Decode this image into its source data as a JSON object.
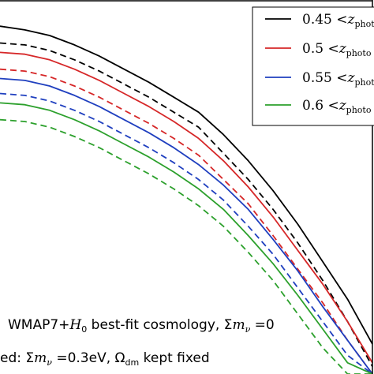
{
  "chart_data": {
    "type": "line",
    "title": "",
    "xlabel": "",
    "ylabel": "",
    "x": [
      0,
      4,
      8,
      12,
      16,
      20,
      24,
      28,
      32,
      36,
      40,
      44,
      48,
      52,
      56,
      60
    ],
    "xlim": [
      0,
      60
    ],
    "ylim": [
      0,
      100
    ],
    "grid": false,
    "legend_position": "top-right",
    "legend": [
      {
        "label": "0.45 < z_photo",
        "color": "#000000"
      },
      {
        "label": "0.5 < z_photo",
        "color": "#d62728"
      },
      {
        "label": "0.55 < z_photo",
        "color": "#1f3fbf"
      },
      {
        "label": "0.6 < z_photo",
        "color": "#2ca02c"
      }
    ],
    "series": [
      {
        "label_ref": 0,
        "style": "solid",
        "color": "#000000",
        "values": [
          93,
          92,
          90.5,
          88,
          85,
          81.5,
          78,
          74,
          70,
          64,
          57,
          49,
          40,
          30,
          20,
          8
        ]
      },
      {
        "label_ref": 0,
        "style": "dashed",
        "color": "#000000",
        "values": [
          88.5,
          88,
          86.5,
          84,
          81,
          77.5,
          74,
          70,
          66,
          59,
          52,
          44,
          35,
          25,
          14,
          2
        ]
      },
      {
        "label_ref": 1,
        "style": "solid",
        "color": "#d62728",
        "values": [
          86,
          85.5,
          84,
          81.5,
          78.5,
          75,
          71.5,
          67.5,
          63,
          57,
          50,
          42,
          33,
          24,
          14,
          3
        ]
      },
      {
        "label_ref": 1,
        "style": "dashed",
        "color": "#d62728",
        "values": [
          81.5,
          81,
          79.5,
          77,
          74,
          70.5,
          67,
          63,
          58.5,
          52,
          45.5,
          37,
          28,
          19,
          9,
          0
        ]
      },
      {
        "label_ref": 2,
        "style": "solid",
        "color": "#1f3fbf",
        "values": [
          79,
          78.5,
          77,
          74.5,
          71.5,
          68,
          64.5,
          60.5,
          56,
          50.5,
          44,
          36,
          27.5,
          18,
          9,
          0
        ]
      },
      {
        "label_ref": 2,
        "style": "dashed",
        "color": "#1f3fbf",
        "values": [
          75,
          74.5,
          73,
          70.5,
          67.5,
          64,
          60.5,
          56.5,
          52,
          46.5,
          39.5,
          32,
          23,
          14,
          5,
          0
        ]
      },
      {
        "label_ref": 3,
        "style": "solid",
        "color": "#2ca02c",
        "values": [
          72.5,
          72,
          70.5,
          68,
          65,
          61.5,
          58,
          54,
          49.5,
          44,
          37,
          29.5,
          21,
          12,
          3,
          0
        ]
      },
      {
        "label_ref": 3,
        "style": "dashed",
        "color": "#2ca02c",
        "values": [
          68,
          67.5,
          66,
          63.5,
          60.5,
          57,
          53.5,
          49.5,
          45,
          39.5,
          32.5,
          25,
          16,
          7,
          0,
          0
        ]
      }
    ],
    "annotations": [
      "WMAP7+H₀ best-fit cosmology, Σm_ν = 0",
      "ed: Σm_ν = 0.3eV, Ω_dm kept fixed"
    ]
  },
  "legend_items": [
    {
      "prefix": "0.45 <",
      "z": "z",
      "sub": "photo"
    },
    {
      "prefix": "0.5 <",
      "z": "z",
      "sub": "photo"
    },
    {
      "prefix": "0.55 <",
      "z": "z",
      "sub": "photo"
    },
    {
      "prefix": "0.6 <",
      "z": "z",
      "sub": "photo"
    }
  ],
  "annotation_1": {
    "part1": "WMAP7+",
    "H": "H",
    "H_sub": "0",
    "part2": " best-fit cosmology, Σ",
    "m": "m",
    "nu": "ν",
    "part3": " =0"
  },
  "annotation_2": {
    "part1": "ed: Σ",
    "m": "m",
    "nu": "ν",
    "part2": " =0.3eV, Ω",
    "dm": "dm",
    "part3": " kept fixed"
  }
}
